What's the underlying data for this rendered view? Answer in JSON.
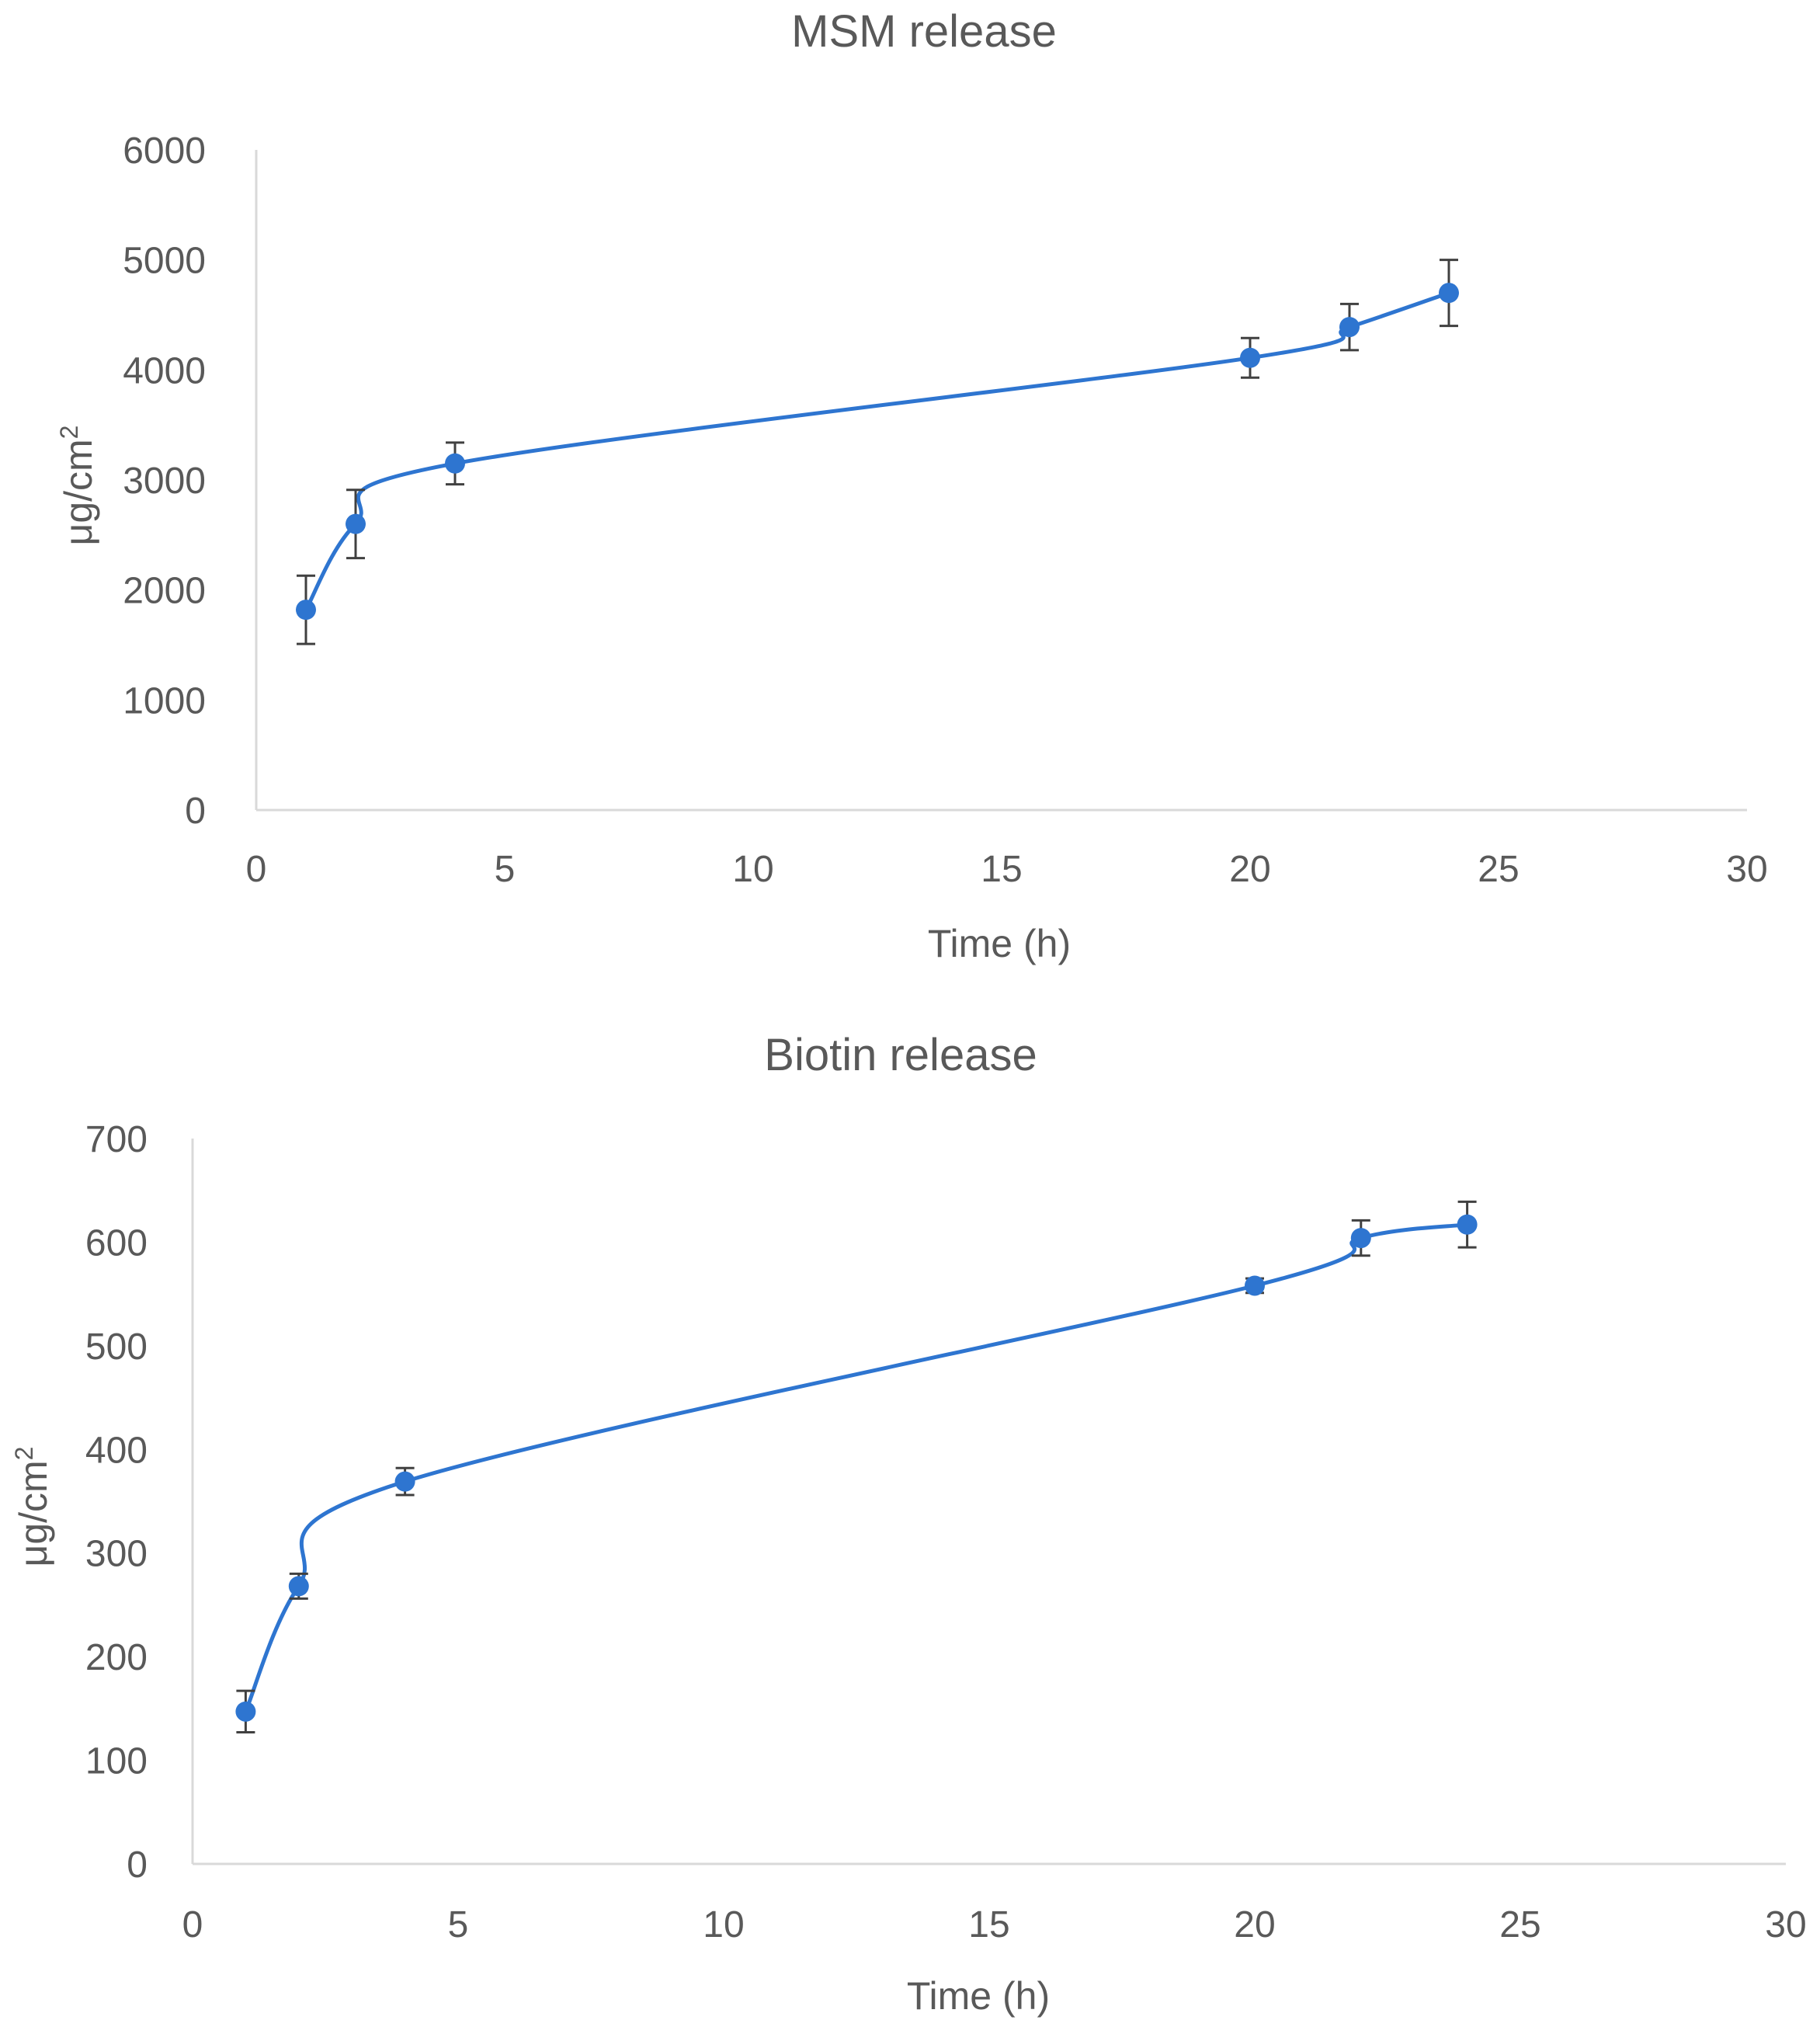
{
  "chart_data": [
    {
      "type": "line",
      "title": "MSM release",
      "xlabel": "Time (h)",
      "ylabel": "μg/cm",
      "ylabel_superscript": "2",
      "xlim": [
        0,
        30
      ],
      "ylim": [
        0,
        6000
      ],
      "xticks": [
        0,
        5,
        10,
        15,
        20,
        25,
        30
      ],
      "yticks": [
        0,
        1000,
        2000,
        3000,
        4000,
        5000,
        6000
      ],
      "grid": false,
      "smooth": true,
      "series": [
        {
          "color": "#2E75D0",
          "points": [
            {
              "x": 1,
              "y": 1820,
              "err": 310
            },
            {
              "x": 2,
              "y": 2600,
              "err": 310
            },
            {
              "x": 4,
              "y": 3150,
              "err": 190
            },
            {
              "x": 20,
              "y": 4110,
              "err": 180
            },
            {
              "x": 22,
              "y": 4390,
              "err": 210
            },
            {
              "x": 24,
              "y": 4700,
              "err": 300
            }
          ]
        }
      ]
    },
    {
      "type": "line",
      "title": "Biotin release",
      "xlabel": "Time (h)",
      "ylabel": "μg/cm",
      "ylabel_superscript": "2",
      "xlim": [
        0,
        30
      ],
      "ylim": [
        0,
        700
      ],
      "xticks": [
        0,
        5,
        10,
        15,
        20,
        25,
        30
      ],
      "yticks": [
        0,
        100,
        200,
        300,
        400,
        500,
        600,
        700
      ],
      "grid": false,
      "smooth": true,
      "series": [
        {
          "color": "#2E75D0",
          "points": [
            {
              "x": 1,
              "y": 147,
              "err": 20
            },
            {
              "x": 2,
              "y": 268,
              "err": 12
            },
            {
              "x": 4,
              "y": 369,
              "err": 13
            },
            {
              "x": 20,
              "y": 558,
              "err": 7
            },
            {
              "x": 22,
              "y": 604,
              "err": 17
            },
            {
              "x": 24,
              "y": 617,
              "err": 22
            }
          ]
        }
      ]
    }
  ]
}
